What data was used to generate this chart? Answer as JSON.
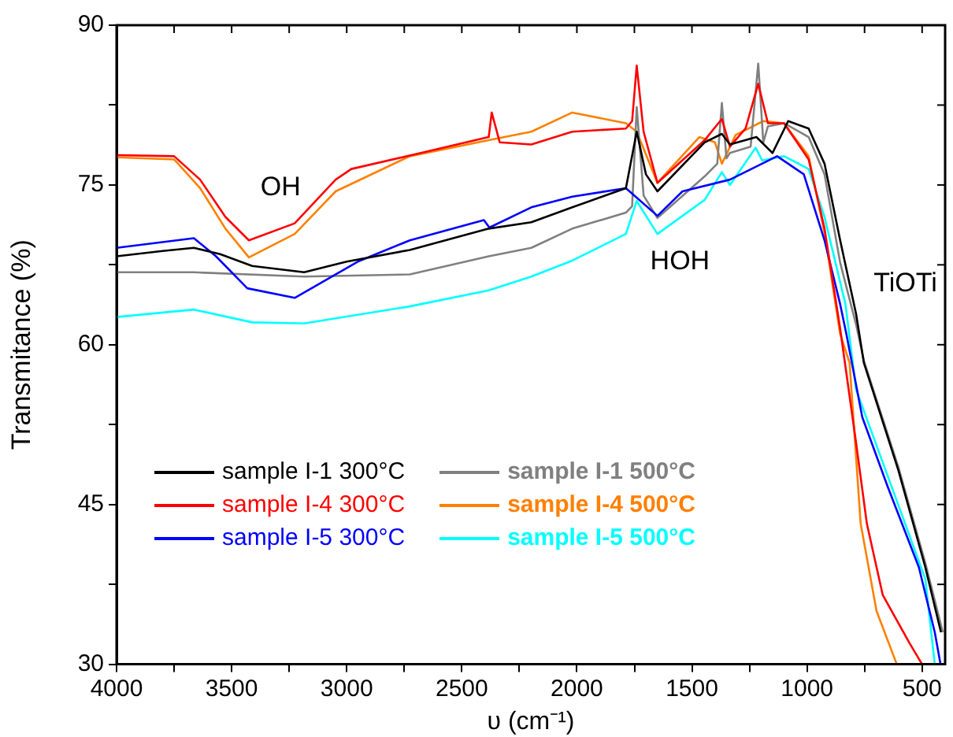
{
  "chart_data": {
    "type": "line",
    "xlabel": "υ (cm⁻¹)",
    "ylabel": "Transmitance (%)",
    "xlim": [
      4000,
      400
    ],
    "xticks": [
      4000,
      {
        "value": 3750,
        "label": null
      },
      3500,
      {
        "value": 3250,
        "label": null
      },
      3000,
      {
        "value": 2750,
        "label": null
      },
      2500,
      {
        "value": 2250,
        "label": null
      },
      2000,
      {
        "value": 1750,
        "label": null
      },
      1500,
      {
        "value": 1250,
        "label": null
      },
      1000,
      {
        "value": 750,
        "label": null
      },
      500
    ],
    "ylim": [
      30,
      90
    ],
    "yticks": [
      30,
      {
        "value": 37.5,
        "label": null
      },
      45,
      {
        "value": 52.5,
        "label": null
      },
      60,
      {
        "value": 67.5,
        "label": null
      },
      75,
      {
        "value": 82.5,
        "label": null
      },
      90
    ],
    "grid": false,
    "legend": "bottom left",
    "marker": "none",
    "line_style": "solid",
    "annotations": [
      "OH",
      "HOH",
      "TiOTi"
    ],
    "series": [
      {
        "name": "sample I-1 300°C",
        "color": "#000000",
        "x": [
          4000,
          3800,
          3664,
          3550,
          3411,
          3185,
          3000,
          2726,
          2383,
          2198,
          2020,
          1787,
          1740,
          1700,
          1650,
          1445,
          1370,
          1335,
          1220,
          1150,
          1082,
          993,
          924,
          856,
          787,
          753,
          603,
          486,
          418
        ],
        "values": [
          68.3,
          68.8,
          69.1,
          68.5,
          67.4,
          66.8,
          67.8,
          68.9,
          70.9,
          71.5,
          72.9,
          74.7,
          80,
          76,
          74.4,
          79,
          79.8,
          78.8,
          79.5,
          78,
          81,
          80.3,
          77,
          69.8,
          62.9,
          58.3,
          48.2,
          39.1,
          33
        ]
      },
      {
        "name": "sample I-4 300°C",
        "color": "#ff0000",
        "x": [
          4000,
          3750,
          3637,
          3527,
          3425,
          3226,
          3048,
          2980,
          2678,
          2383,
          2370,
          2335,
          2198,
          2020,
          1787,
          1760,
          1740,
          1710,
          1650,
          1445,
          1370,
          1335,
          1267,
          1212,
          1170,
          1100,
          993,
          924,
          856,
          787,
          740,
          671,
          555,
          500
        ],
        "values": [
          77.8,
          77.7,
          75.5,
          72,
          69.8,
          71.4,
          75.5,
          76.5,
          78,
          79.5,
          81.8,
          79,
          78.8,
          80,
          80.3,
          81,
          86.2,
          80,
          75.2,
          79.2,
          81.2,
          78.6,
          80.3,
          84.5,
          80.8,
          80.8,
          77.4,
          70.9,
          61.5,
          50.8,
          43.2,
          36.5,
          32,
          30
        ]
      },
      {
        "name": "sample I-5 300°C",
        "color": "#0000ff",
        "x": [
          4000,
          3664,
          3568,
          3432,
          3226,
          2952,
          2726,
          2404,
          2380,
          2198,
          2020,
          1787,
          1650,
          1541,
          1335,
          1130,
          1014,
          924,
          856,
          829,
          760,
          650,
          514,
          445,
          420
        ],
        "values": [
          69.1,
          70,
          68.3,
          65.3,
          64.4,
          67.8,
          69.8,
          71.7,
          71,
          72.9,
          73.9,
          74.7,
          72.1,
          74.4,
          75.5,
          77.7,
          76,
          69.8,
          63.8,
          61,
          53.2,
          46.7,
          39.1,
          33,
          30
        ]
      },
      {
        "name": "sample I-1 500°C",
        "color": "#808080",
        "x": [
          4000,
          3664,
          3185,
          2726,
          2383,
          2198,
          2020,
          1787,
          1760,
          1740,
          1710,
          1650,
          1445,
          1390,
          1370,
          1350,
          1335,
          1245,
          1212,
          1190,
          1170,
          1100,
          993,
          924,
          856,
          787,
          753,
          603,
          486,
          410
        ],
        "values": [
          66.8,
          66.8,
          66.4,
          66.6,
          68.3,
          69.1,
          70.9,
          72.4,
          73,
          82.3,
          74,
          71.9,
          75.8,
          77,
          82.7,
          77.5,
          78,
          78.6,
          86.4,
          79,
          80.5,
          80.8,
          79.5,
          76,
          67.7,
          61.9,
          58.5,
          48.5,
          39.5,
          33
        ]
      },
      {
        "name": "sample I-4 500°C",
        "color": "#ff8000",
        "x": [
          4000,
          3750,
          3637,
          3527,
          3425,
          3226,
          3048,
          2726,
          2383,
          2198,
          2020,
          1787,
          1740,
          1650,
          1468,
          1400,
          1370,
          1310,
          1190,
          1100,
          993,
          924,
          856,
          815,
          767,
          698,
          610
        ],
        "values": [
          77.6,
          77.4,
          74.7,
          70.9,
          68.2,
          70.4,
          74.4,
          77.7,
          79.2,
          80,
          81.8,
          80.8,
          80,
          75.2,
          79.5,
          79,
          77,
          79.7,
          81,
          80.8,
          77.7,
          70.5,
          61,
          58.3,
          43.2,
          35,
          30
        ]
      },
      {
        "name": "sample I-5 500°C",
        "color": "#00ffff",
        "x": [
          4000,
          3664,
          3411,
          3185,
          2726,
          2383,
          2198,
          2020,
          1787,
          1740,
          1650,
          1445,
          1370,
          1335,
          1223,
          1195,
          1100,
          993,
          924,
          833,
          787,
          650,
          486,
          445
        ],
        "values": [
          62.6,
          63.3,
          62.1,
          62,
          63.6,
          65.1,
          66.4,
          67.9,
          70.4,
          73.5,
          70.4,
          73.6,
          76.2,
          75,
          78.5,
          77.3,
          77.7,
          76.5,
          72,
          63.8,
          55.8,
          47.7,
          38,
          30
        ]
      }
    ]
  }
}
